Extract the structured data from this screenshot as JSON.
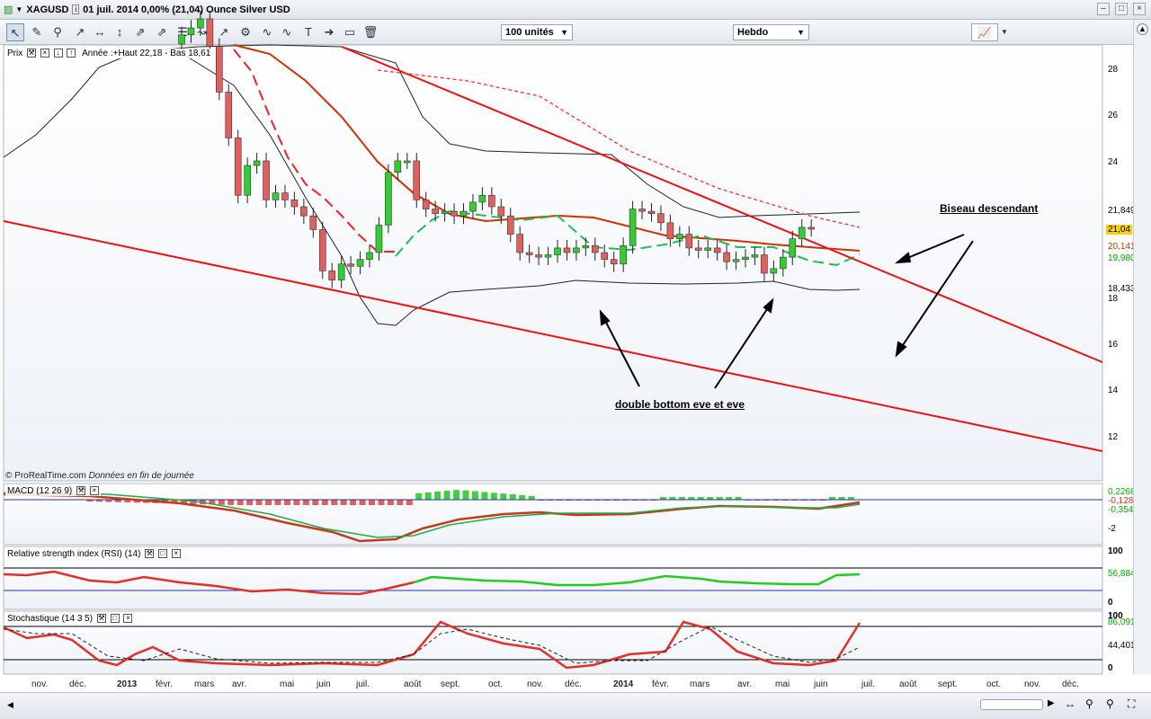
{
  "title": {
    "symbol": "XAGUSD",
    "info": "01 juil. 2014  0,00% (21,04)  Ounce Silver USD"
  },
  "toolbar": {
    "units_select": "100 unités",
    "period_select": "Hebdo"
  },
  "price_panel": {
    "label": "Prix",
    "legend": "Année :+Haut 22,18 - Bas 18,61",
    "credit_source": "© ProRealTime.com",
    "credit_note": "Données en fin de journée",
    "y_ticks": [
      "28",
      "26",
      "24",
      "22",
      "20",
      "18",
      "16",
      "14",
      "12"
    ],
    "price_tags": [
      {
        "text": "21,849",
        "color": "#000000",
        "bg": "#ffffff"
      },
      {
        "text": "21,04",
        "color": "#000000",
        "bg": "#ffd000"
      },
      {
        "text": "20,141",
        "color": "#cc3300",
        "bg": "#ffffff"
      },
      {
        "text": "19,980",
        "color": "#00a000",
        "bg": "#ffffff"
      },
      {
        "text": "18,433",
        "color": "#000000",
        "bg": "#ffffff"
      }
    ]
  },
  "annotations": {
    "wedge": "Biseau descendant",
    "double_bottom": "double bottom eve et eve"
  },
  "macd_panel": {
    "label": "MACD (12 26 9)",
    "tags": [
      "0,2268",
      "-0,1281",
      "-0,3549"
    ],
    "y_ticks": [
      "-2"
    ]
  },
  "rsi_panel": {
    "label": "Relative strength index (RSI) (14)",
    "tags": [
      "56,884"
    ],
    "y_ticks": [
      "100",
      "0"
    ]
  },
  "stoch_panel": {
    "label": "Stochastique (14 3 5)",
    "tags": [
      "86,091",
      "44,401"
    ],
    "y_ticks": [
      "100",
      "0"
    ]
  },
  "x_axis": [
    {
      "label": "nov.",
      "bold": false
    },
    {
      "label": "déc.",
      "bold": false
    },
    {
      "label": "2013",
      "bold": true
    },
    {
      "label": "févr.",
      "bold": false
    },
    {
      "label": "mars",
      "bold": false
    },
    {
      "label": "avr.",
      "bold": false
    },
    {
      "label": "mai",
      "bold": false
    },
    {
      "label": "juin",
      "bold": false
    },
    {
      "label": "juil.",
      "bold": false
    },
    {
      "label": "août",
      "bold": false
    },
    {
      "label": "sept.",
      "bold": false
    },
    {
      "label": "oct.",
      "bold": false
    },
    {
      "label": "nov.",
      "bold": false
    },
    {
      "label": "déc.",
      "bold": false
    },
    {
      "label": "2014",
      "bold": true
    },
    {
      "label": "févr.",
      "bold": false
    },
    {
      "label": "mars",
      "bold": false
    },
    {
      "label": "avr.",
      "bold": false
    },
    {
      "label": "mai",
      "bold": false
    },
    {
      "label": "juin",
      "bold": false
    },
    {
      "label": "juil.",
      "bold": false
    },
    {
      "label": "août",
      "bold": false
    },
    {
      "label": "sept.",
      "bold": false
    },
    {
      "label": "oct.",
      "bold": false
    },
    {
      "label": "nov.",
      "bold": false
    },
    {
      "label": "déc.",
      "bold": false
    }
  ],
  "chart_data": {
    "type": "candlestick",
    "series": [
      {
        "name": "XAGUSD",
        "close": [
          29.5,
          29.8,
          30.2,
          29.0,
          27.0,
          25.0,
          22.5,
          23.8,
          24.0,
          22.3,
          22.6,
          22.3,
          22.0,
          21.6,
          21.0,
          19.2,
          18.8,
          19.5,
          19.4,
          19.7,
          20.0,
          21.2,
          23.5,
          24.0,
          24.0,
          22.3,
          21.9,
          21.7,
          21.8,
          21.6,
          21.8,
          22.2,
          22.5,
          22.0,
          21.6,
          20.8,
          20.0,
          19.9,
          19.8,
          19.9,
          20.2,
          20.0,
          20.2,
          20.3,
          20.0,
          19.7,
          19.5,
          20.3,
          21.9,
          21.8,
          21.7,
          21.3,
          20.6,
          20.8,
          20.2,
          20.1,
          20.2,
          20.0,
          19.6,
          19.7,
          19.8,
          19.9,
          19.1,
          19.3,
          19.8,
          20.6,
          21.1,
          21.04
        ]
      }
    ]
  },
  "colors": {
    "bull": "#33cc33",
    "bear": "#e06060",
    "trend": "#ee1111",
    "ma_orange": "#cc3300",
    "ma_green": "#22bb55"
  }
}
